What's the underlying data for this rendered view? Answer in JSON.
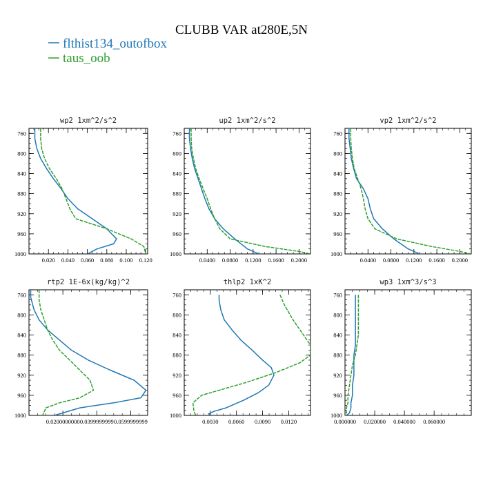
{
  "figure": {
    "title": "CLUBB VAR at280E,5N",
    "legend": [
      {
        "label": "flthist134_outofbox",
        "color": "#1f77b4"
      },
      {
        "label": "taus_oob",
        "color": "#2ca02c"
      }
    ]
  },
  "chart_data": [
    {
      "type": "line",
      "title": "wp2  1xm^2/s^2",
      "xlim": [
        0.0,
        0.122
      ],
      "ylim": [
        750,
        1000
      ],
      "y_inverted": true,
      "xticks": [
        "0.020",
        "0.040",
        "0.060",
        "0.080",
        "0.100",
        "0.120"
      ],
      "xtick_values": [
        0.02,
        0.04,
        0.06,
        0.08,
        0.1,
        0.12
      ],
      "yticks": [
        760,
        800,
        840,
        880,
        920,
        960,
        1000
      ],
      "series": [
        {
          "color": "#1f77b4",
          "x": [
            0.006,
            0.006,
            0.008,
            0.012,
            0.018,
            0.025,
            0.033,
            0.04,
            0.05,
            0.065,
            0.08,
            0.09,
            0.087,
            0.07,
            0.06
          ],
          "y": [
            750,
            770,
            790,
            810,
            830,
            850,
            870,
            890,
            910,
            930,
            950,
            970,
            980,
            990,
            1000
          ]
        },
        {
          "color": "#2ca02c",
          "x": [
            0.012,
            0.012,
            0.013,
            0.016,
            0.021,
            0.028,
            0.034,
            0.038,
            0.042,
            0.048,
            0.08,
            0.105,
            0.118,
            0.12
          ],
          "y": [
            750,
            770,
            790,
            810,
            830,
            850,
            870,
            890,
            910,
            930,
            950,
            970,
            985,
            1000
          ]
        }
      ]
    },
    {
      "type": "line",
      "title": "up2  1xm^2/s^2",
      "xlim": [
        0.0,
        0.22
      ],
      "ylim": [
        750,
        1000
      ],
      "y_inverted": true,
      "xticks": [
        "0.0400",
        "0.0800",
        "0.1200",
        "0.1600",
        "0.2000"
      ],
      "xtick_values": [
        0.04,
        0.08,
        0.12,
        0.16,
        0.2
      ],
      "yticks": [
        760,
        800,
        840,
        880,
        920,
        960,
        1000
      ],
      "series": [
        {
          "color": "#1f77b4",
          "x": [
            0.009,
            0.009,
            0.011,
            0.014,
            0.018,
            0.024,
            0.03,
            0.036,
            0.043,
            0.053,
            0.068,
            0.088,
            0.11,
            0.13
          ],
          "y": [
            750,
            770,
            790,
            810,
            830,
            850,
            870,
            890,
            910,
            930,
            950,
            970,
            990,
            1000
          ]
        },
        {
          "color": "#2ca02c",
          "x": [
            0.012,
            0.012,
            0.013,
            0.016,
            0.02,
            0.026,
            0.033,
            0.04,
            0.046,
            0.053,
            0.062,
            0.08,
            0.14,
            0.2,
            0.22
          ],
          "y": [
            750,
            770,
            790,
            810,
            830,
            850,
            870,
            890,
            910,
            930,
            950,
            970,
            985,
            995,
            1000
          ]
        }
      ]
    },
    {
      "type": "line",
      "title": "vp2  1xm^2/s^2",
      "xlim": [
        0.0,
        0.22
      ],
      "ylim": [
        750,
        1000
      ],
      "y_inverted": true,
      "xticks": [
        "0.0400",
        "0.0800",
        "0.1200",
        "0.1600",
        "0.2000"
      ],
      "xtick_values": [
        0.04,
        0.08,
        0.12,
        0.16,
        0.2
      ],
      "yticks": [
        760,
        800,
        840,
        880,
        920,
        960,
        1000
      ],
      "series": [
        {
          "color": "#1f77b4",
          "x": [
            0.007,
            0.007,
            0.009,
            0.011,
            0.015,
            0.02,
            0.032,
            0.04,
            0.044,
            0.05,
            0.065,
            0.085,
            0.11,
            0.13
          ],
          "y": [
            750,
            770,
            790,
            810,
            830,
            850,
            870,
            890,
            910,
            930,
            950,
            970,
            990,
            1000
          ]
        },
        {
          "color": "#2ca02c",
          "x": [
            0.01,
            0.01,
            0.011,
            0.013,
            0.016,
            0.022,
            0.028,
            0.032,
            0.035,
            0.04,
            0.052,
            0.09,
            0.15,
            0.2,
            0.22
          ],
          "y": [
            750,
            770,
            790,
            810,
            830,
            850,
            870,
            890,
            910,
            930,
            950,
            970,
            985,
            995,
            1000
          ]
        }
      ]
    },
    {
      "type": "line",
      "title": "rtp2  1E-6x(kg/kg)^2",
      "xlim": [
        0.0,
        0.07
      ],
      "ylim": [
        750,
        1000
      ],
      "y_inverted": true,
      "xticks": [
        "0.0200000000",
        "0.0399999999",
        "0.0599999999"
      ],
      "xtick_values": [
        0.02,
        0.04,
        0.06
      ],
      "yticks": [
        760,
        800,
        840,
        880,
        920,
        960,
        1000
      ],
      "series": [
        {
          "color": "#1f77b4",
          "x": [
            0.001,
            0.001,
            0.003,
            0.006,
            0.011,
            0.018,
            0.025,
            0.035,
            0.048,
            0.062,
            0.069,
            0.066,
            0.05,
            0.03,
            0.015
          ],
          "y": [
            750,
            765,
            790,
            810,
            830,
            850,
            870,
            890,
            910,
            930,
            950,
            965,
            975,
            985,
            1000
          ]
        },
        {
          "color": "#2ca02c",
          "x": [
            0.006,
            0.006,
            0.007,
            0.009,
            0.011,
            0.014,
            0.018,
            0.024,
            0.03,
            0.036,
            0.038,
            0.03,
            0.018,
            0.01,
            0.008
          ],
          "y": [
            750,
            770,
            790,
            810,
            830,
            850,
            870,
            890,
            910,
            930,
            950,
            965,
            975,
            985,
            1000
          ]
        }
      ]
    },
    {
      "type": "line",
      "title": "thlp2  1xK^2",
      "xlim": [
        0.0,
        0.0145
      ],
      "ylim": [
        750,
        1000
      ],
      "y_inverted": true,
      "xticks": [
        "0.0030",
        "0.0060",
        "0.0090",
        "0.0120"
      ],
      "xtick_values": [
        0.003,
        0.006,
        0.009,
        0.012
      ],
      "yticks": [
        760,
        800,
        840,
        880,
        920,
        960,
        1000
      ],
      "series": [
        {
          "color": "#1f77b4",
          "x": [
            0.004,
            0.004,
            0.0042,
            0.0046,
            0.0055,
            0.0065,
            0.0078,
            0.009,
            0.01,
            0.0103,
            0.0097,
            0.0085,
            0.0068,
            0.0048,
            0.0034,
            0.0028,
            0.003
          ],
          "y": [
            760,
            770,
            790,
            810,
            830,
            850,
            870,
            890,
            905,
            920,
            940,
            955,
            970,
            985,
            992,
            997,
            1000
          ]
        },
        {
          "color": "#2ca02c",
          "x": [
            0.011,
            0.0115,
            0.0125,
            0.0137,
            0.0145,
            0.0145,
            0.0133,
            0.0105,
            0.007,
            0.004,
            0.002,
            0.001,
            0.0011,
            0.0013
          ],
          "y": [
            760,
            780,
            810,
            840,
            860,
            880,
            895,
            915,
            935,
            950,
            960,
            975,
            990,
            1000
          ]
        }
      ]
    },
    {
      "type": "line",
      "title": "wp3  1xm^3/s^3",
      "xlim": [
        0.0,
        0.085
      ],
      "ylim": [
        750,
        1000
      ],
      "y_inverted": true,
      "xticks": [
        "0.000000",
        "0.020000",
        "0.040000",
        "0.060000"
      ],
      "xtick_values": [
        0.0,
        0.02,
        0.04,
        0.06
      ],
      "yticks": [
        760,
        800,
        840,
        880,
        920,
        960,
        1000
      ],
      "series": [
        {
          "color": "#1f77b4",
          "x": [
            0.007,
            0.007,
            0.007,
            0.007,
            0.007,
            0.007,
            0.006,
            0.006,
            0.006,
            0.005,
            0.005,
            0.004,
            0.004,
            0.003,
            0.001
          ],
          "y": [
            760,
            780,
            800,
            820,
            840,
            860,
            880,
            900,
            920,
            940,
            960,
            975,
            985,
            995,
            1000
          ]
        },
        {
          "color": "#2ca02c",
          "x": [
            0.009,
            0.009,
            0.009,
            0.009,
            0.008,
            0.007,
            0.005,
            0.004,
            0.003,
            0.002,
            0.002,
            0.001,
            0.001,
            0.0
          ],
          "y": [
            760,
            790,
            820,
            840,
            860,
            880,
            900,
            920,
            940,
            960,
            975,
            985,
            995,
            1000
          ]
        }
      ]
    }
  ]
}
